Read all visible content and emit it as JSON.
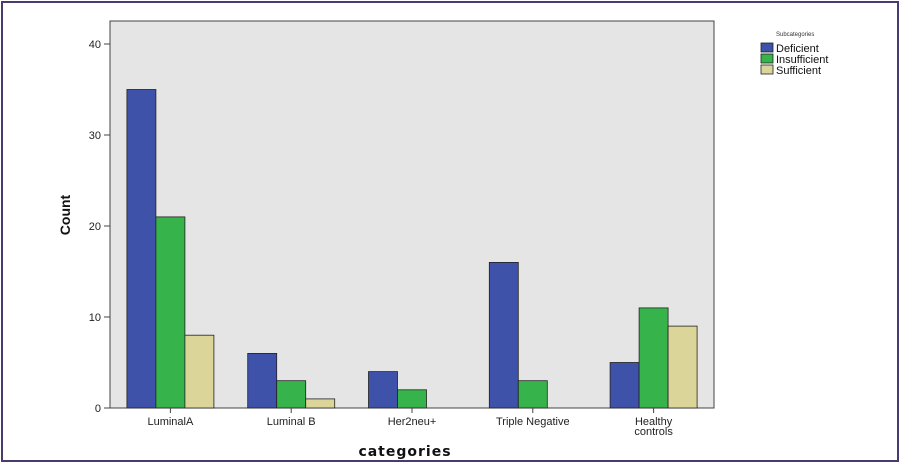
{
  "chart_data": {
    "type": "bar",
    "title": "",
    "xlabel": "categories",
    "ylabel": "Count",
    "categories": [
      "LuminalA",
      "Luminal B",
      "Her2neu+",
      "Triple Negative",
      "Healthy controls"
    ],
    "category_lines": [
      [
        "LuminalA"
      ],
      [
        "Luminal B"
      ],
      [
        "Her2neu+"
      ],
      [
        "Triple Negative"
      ],
      [
        "Healthy",
        "controls"
      ]
    ],
    "series": [
      {
        "name": "Deficient",
        "values": [
          35,
          6,
          4,
          16,
          5
        ],
        "color": "#3d52a8"
      },
      {
        "name": "Insufficient",
        "values": [
          21,
          3,
          2,
          3,
          11
        ],
        "color": "#36b34a"
      },
      {
        "name": "Sufficient",
        "values": [
          8,
          1,
          0,
          0,
          9
        ],
        "color": "#dcd59a"
      }
    ],
    "ylim": [
      0,
      40
    ],
    "yticks": [
      0,
      10,
      20,
      30,
      40
    ],
    "legend_title": "Subcategories",
    "legend_position": "top-right",
    "plot_background": "#e5e5e5",
    "grid": false
  }
}
